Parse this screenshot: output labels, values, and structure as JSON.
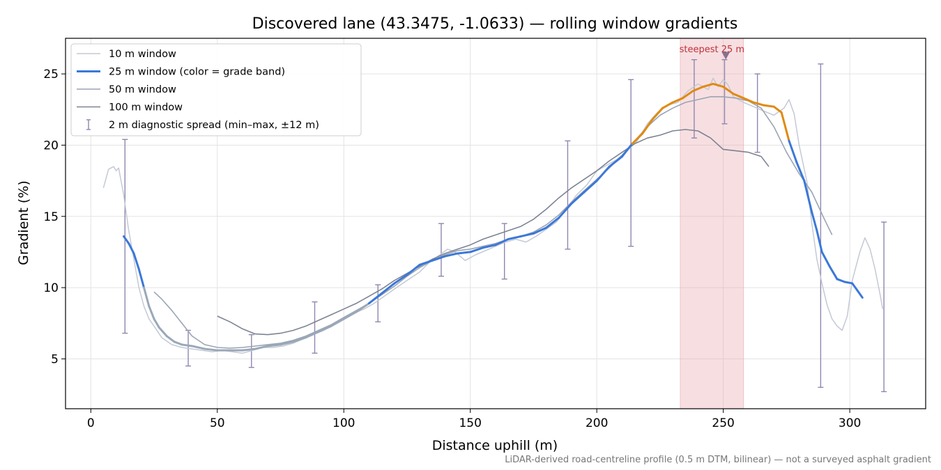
{
  "chart_data": {
    "type": "line",
    "title": "Discovered lane (43.3475, -1.0633) — rolling window gradients",
    "xlabel": "Distance uphill (m)",
    "ylabel": "Gradient (%)",
    "footnote": "LiDAR-derived road-centreline profile (0.5 m DTM, bilinear) — not a surveyed asphalt gradient",
    "xlim": [
      -10,
      330
    ],
    "ylim": [
      1.5,
      27.5
    ],
    "xticks": [
      0,
      50,
      100,
      150,
      200,
      250,
      300
    ],
    "yticks": [
      5,
      10,
      15,
      20,
      25
    ],
    "grid": true,
    "legend_position": "top-left",
    "highlight": {
      "x_start": 233,
      "x_end": 258,
      "label": "steepest 25 m",
      "marker_x": 251,
      "marker_y": 26.3
    },
    "series": [
      {
        "name": "10 m window",
        "color": "#c3c9d4",
        "points": [
          [
            5,
            17
          ],
          [
            7,
            18.3
          ],
          [
            9,
            18.5
          ],
          [
            10,
            18.2
          ],
          [
            11,
            18.4
          ],
          [
            13,
            16.5
          ],
          [
            15,
            14
          ],
          [
            17,
            12
          ],
          [
            19,
            10
          ],
          [
            21,
            8.7
          ],
          [
            23,
            7.8
          ],
          [
            25,
            7.3
          ],
          [
            28,
            6.5
          ],
          [
            32,
            6
          ],
          [
            36,
            5.8
          ],
          [
            40,
            5.7
          ],
          [
            44,
            5.6
          ],
          [
            48,
            5.5
          ],
          [
            52,
            5.6
          ],
          [
            56,
            5.5
          ],
          [
            60,
            5.4
          ],
          [
            64,
            5.6
          ],
          [
            68,
            5.8
          ],
          [
            72,
            5.8
          ],
          [
            76,
            5.9
          ],
          [
            80,
            6.1
          ],
          [
            84,
            6.4
          ],
          [
            88,
            6.7
          ],
          [
            92,
            7
          ],
          [
            96,
            7.4
          ],
          [
            100,
            7.8
          ],
          [
            104,
            8.2
          ],
          [
            108,
            8.5
          ],
          [
            112,
            8.9
          ],
          [
            116,
            9.4
          ],
          [
            120,
            9.9
          ],
          [
            125,
            10.5
          ],
          [
            130,
            11.1
          ],
          [
            134,
            11.8
          ],
          [
            138,
            12.3
          ],
          [
            141,
            12.7
          ],
          [
            144,
            12.5
          ],
          [
            148,
            11.9
          ],
          [
            152,
            12.3
          ],
          [
            156,
            12.6
          ],
          [
            160,
            12.9
          ],
          [
            164,
            13.2
          ],
          [
            168,
            13.4
          ],
          [
            172,
            13.2
          ],
          [
            176,
            13.6
          ],
          [
            180,
            14.1
          ],
          [
            184,
            14.6
          ],
          [
            188,
            15.5
          ],
          [
            192,
            16.5
          ],
          [
            196,
            17.2
          ],
          [
            200,
            18.2
          ],
          [
            204,
            18.6
          ],
          [
            208,
            19
          ],
          [
            212,
            19.6
          ],
          [
            216,
            20.3
          ],
          [
            220,
            21.5
          ],
          [
            224,
            22.3
          ],
          [
            228,
            22.8
          ],
          [
            232,
            23
          ],
          [
            236,
            23.8
          ],
          [
            240,
            24.3
          ],
          [
            244,
            23.9
          ],
          [
            246,
            24.7
          ],
          [
            248,
            24.1
          ],
          [
            250,
            24.6
          ],
          [
            252,
            24.2
          ],
          [
            254,
            23.4
          ],
          [
            258,
            23
          ],
          [
            262,
            22.7
          ],
          [
            266,
            22.4
          ],
          [
            270,
            22.1
          ],
          [
            274,
            22.6
          ],
          [
            276,
            23.2
          ],
          [
            278,
            22.2
          ],
          [
            280,
            20
          ],
          [
            283,
            17.5
          ],
          [
            285,
            14.5
          ],
          [
            287,
            12
          ],
          [
            289,
            10.3
          ],
          [
            291,
            8.8
          ],
          [
            293,
            7.8
          ],
          [
            295,
            7.3
          ],
          [
            297,
            7
          ],
          [
            299,
            8
          ],
          [
            301,
            10.5
          ],
          [
            304,
            12.5
          ],
          [
            306,
            13.5
          ],
          [
            308,
            12.7
          ],
          [
            310,
            11.3
          ],
          [
            312,
            9.5
          ],
          [
            313,
            8.5
          ]
        ]
      },
      {
        "name": "25 m window (color = grade band)",
        "color": "#3b78d8",
        "alt_color": "#e08a12",
        "points": [
          [
            13,
            13.6
          ],
          [
            15,
            13.1
          ],
          [
            17,
            12.4
          ],
          [
            19,
            11.3
          ],
          [
            21,
            10
          ],
          [
            23,
            8.7
          ],
          [
            25,
            7.8
          ],
          [
            27,
            7.2
          ],
          [
            30,
            6.6
          ],
          [
            33,
            6.2
          ],
          [
            36,
            6
          ],
          [
            40,
            5.9
          ],
          [
            45,
            5.7
          ],
          [
            50,
            5.6
          ],
          [
            55,
            5.6
          ],
          [
            60,
            5.6
          ],
          [
            65,
            5.7
          ],
          [
            70,
            5.9
          ],
          [
            75,
            6
          ],
          [
            80,
            6.2
          ],
          [
            85,
            6.5
          ],
          [
            90,
            6.9
          ],
          [
            95,
            7.3
          ],
          [
            100,
            7.8
          ],
          [
            105,
            8.3
          ],
          [
            110,
            8.9
          ],
          [
            115,
            9.6
          ],
          [
            120,
            10.3
          ],
          [
            125,
            10.9
          ],
          [
            130,
            11.6
          ],
          [
            135,
            11.9
          ],
          [
            140,
            12.2
          ],
          [
            145,
            12.4
          ],
          [
            150,
            12.5
          ],
          [
            155,
            12.8
          ],
          [
            160,
            13
          ],
          [
            165,
            13.4
          ],
          [
            170,
            13.6
          ],
          [
            175,
            13.8
          ],
          [
            180,
            14.2
          ],
          [
            185,
            14.9
          ],
          [
            190,
            15.9
          ],
          [
            195,
            16.7
          ],
          [
            200,
            17.5
          ],
          [
            205,
            18.5
          ],
          [
            210,
            19.2
          ],
          [
            214,
            20.1
          ],
          [
            218,
            20.8
          ],
          [
            222,
            21.8
          ],
          [
            226,
            22.6
          ],
          [
            230,
            23
          ],
          [
            234,
            23.3
          ],
          [
            238,
            23.8
          ],
          [
            242,
            24.1
          ],
          [
            246,
            24.3
          ],
          [
            250,
            24.1
          ],
          [
            254,
            23.6
          ],
          [
            258,
            23.3
          ],
          [
            262,
            23
          ],
          [
            266,
            22.8
          ],
          [
            270,
            22.7
          ],
          [
            273,
            22.3
          ],
          [
            276,
            20.3
          ],
          [
            279,
            18.8
          ],
          [
            282,
            17.5
          ],
          [
            285,
            15.3
          ],
          [
            287,
            14
          ],
          [
            289,
            12.5
          ],
          [
            292,
            11.5
          ],
          [
            295,
            10.6
          ],
          [
            298,
            10.4
          ],
          [
            301,
            10.3
          ],
          [
            303,
            9.8
          ],
          [
            305,
            9.3
          ]
        ],
        "alt_range": [
          214,
          276
        ],
        "faded_range": [
          21,
          112
        ]
      },
      {
        "name": "50 m window",
        "color": "#9aa4b4",
        "points": [
          [
            25,
            9.7
          ],
          [
            28,
            9.2
          ],
          [
            32,
            8.4
          ],
          [
            36,
            7.5
          ],
          [
            40,
            6.6
          ],
          [
            45,
            6
          ],
          [
            50,
            5.8
          ],
          [
            55,
            5.75
          ],
          [
            60,
            5.8
          ],
          [
            65,
            5.9
          ],
          [
            70,
            6
          ],
          [
            75,
            6.1
          ],
          [
            80,
            6.3
          ],
          [
            85,
            6.6
          ],
          [
            90,
            7
          ],
          [
            95,
            7.4
          ],
          [
            100,
            7.9
          ],
          [
            105,
            8.4
          ],
          [
            110,
            8.9
          ],
          [
            115,
            9.5
          ],
          [
            120,
            10.1
          ],
          [
            125,
            10.8
          ],
          [
            130,
            11.4
          ],
          [
            135,
            11.9
          ],
          [
            140,
            12.3
          ],
          [
            145,
            12.6
          ],
          [
            150,
            12.7
          ],
          [
            155,
            12.9
          ],
          [
            160,
            13.1
          ],
          [
            165,
            13.4
          ],
          [
            170,
            13.6
          ],
          [
            175,
            13.9
          ],
          [
            180,
            14.4
          ],
          [
            185,
            15.1
          ],
          [
            190,
            16
          ],
          [
            195,
            16.8
          ],
          [
            200,
            17.6
          ],
          [
            205,
            18.4
          ],
          [
            210,
            19.3
          ],
          [
            215,
            20.3
          ],
          [
            220,
            21.3
          ],
          [
            225,
            22.1
          ],
          [
            230,
            22.6
          ],
          [
            235,
            23
          ],
          [
            240,
            23.2
          ],
          [
            245,
            23.4
          ],
          [
            250,
            23.4
          ],
          [
            255,
            23.3
          ],
          [
            260,
            23.1
          ],
          [
            265,
            22.6
          ],
          [
            270,
            21.3
          ],
          [
            275,
            19.5
          ],
          [
            280,
            18
          ],
          [
            285,
            16.7
          ],
          [
            290,
            14.8
          ],
          [
            293,
            13.7
          ]
        ]
      },
      {
        "name": "100 m window",
        "color": "#7c8393",
        "points": [
          [
            50,
            8
          ],
          [
            55,
            7.6
          ],
          [
            60,
            7.1
          ],
          [
            65,
            6.75
          ],
          [
            70,
            6.7
          ],
          [
            75,
            6.8
          ],
          [
            80,
            7
          ],
          [
            85,
            7.3
          ],
          [
            90,
            7.7
          ],
          [
            95,
            8.1
          ],
          [
            100,
            8.5
          ],
          [
            105,
            8.9
          ],
          [
            110,
            9.4
          ],
          [
            115,
            9.9
          ],
          [
            120,
            10.5
          ],
          [
            125,
            11
          ],
          [
            130,
            11.5
          ],
          [
            135,
            12
          ],
          [
            140,
            12.4
          ],
          [
            145,
            12.7
          ],
          [
            150,
            13
          ],
          [
            155,
            13.4
          ],
          [
            160,
            13.7
          ],
          [
            165,
            14
          ],
          [
            170,
            14.3
          ],
          [
            175,
            14.8
          ],
          [
            180,
            15.5
          ],
          [
            185,
            16.3
          ],
          [
            190,
            17
          ],
          [
            195,
            17.6
          ],
          [
            200,
            18.2
          ],
          [
            205,
            18.9
          ],
          [
            210,
            19.5
          ],
          [
            215,
            20.1
          ],
          [
            220,
            20.5
          ],
          [
            225,
            20.7
          ],
          [
            230,
            21
          ],
          [
            235,
            21.1
          ],
          [
            240,
            21
          ],
          [
            245,
            20.5
          ],
          [
            250,
            19.7
          ],
          [
            255,
            19.6
          ],
          [
            260,
            19.5
          ],
          [
            265,
            19.2
          ],
          [
            268,
            18.5
          ]
        ]
      }
    ],
    "error_bars": {
      "name": "2 m diagnostic spread (min–max, ±12 m)",
      "color": "#8f86b0",
      "points": [
        {
          "x": 13.5,
          "low": 6.8,
          "high": 20.4
        },
        {
          "x": 38.5,
          "low": 4.5,
          "high": 7
        },
        {
          "x": 63.5,
          "low": 4.4,
          "high": 6.7
        },
        {
          "x": 88.5,
          "low": 5.4,
          "high": 9
        },
        {
          "x": 113.5,
          "low": 7.6,
          "high": 10.2
        },
        {
          "x": 138.5,
          "low": 10.8,
          "high": 14.5
        },
        {
          "x": 163.5,
          "low": 10.6,
          "high": 14.5
        },
        {
          "x": 188.5,
          "low": 12.7,
          "high": 20.3
        },
        {
          "x": 213.5,
          "low": 12.9,
          "high": 24.6
        },
        {
          "x": 238.5,
          "low": 20.5,
          "high": 26
        },
        {
          "x": 250.5,
          "low": 21.5,
          "high": 26
        },
        {
          "x": 263.5,
          "low": 19.5,
          "high": 25
        },
        {
          "x": 288.5,
          "low": 3,
          "high": 25.7
        },
        {
          "x": 313.5,
          "low": 2.7,
          "high": 14.6
        }
      ]
    }
  }
}
